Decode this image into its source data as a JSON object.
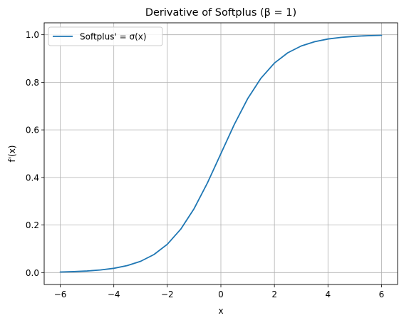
{
  "chart_data": {
    "type": "line",
    "title": "Derivative of Softplus (β = 1)",
    "xlabel": "x",
    "ylabel": "f'(x)",
    "xlim": [
      -6.6,
      6.6
    ],
    "ylim": [
      -0.05,
      1.05
    ],
    "xticks": [
      -6,
      -4,
      -2,
      0,
      2,
      4,
      6
    ],
    "xtick_labels": [
      "−6",
      "−4",
      "−2",
      "0",
      "2",
      "4",
      "6"
    ],
    "yticks": [
      0.0,
      0.2,
      0.4,
      0.6,
      0.8,
      1.0
    ],
    "ytick_labels": [
      "0.0",
      "0.2",
      "0.4",
      "0.6",
      "0.8",
      "1.0"
    ],
    "grid": true,
    "legend": "upper-left",
    "series": [
      {
        "name": "Softplus' = σ(x)",
        "color": "#1f77b4",
        "x": [
          -6,
          -5.5,
          -5,
          -4.5,
          -4,
          -3.5,
          -3,
          -2.5,
          -2,
          -1.5,
          -1,
          -0.5,
          0,
          0.5,
          1,
          1.5,
          2,
          2.5,
          3,
          3.5,
          4,
          4.5,
          5,
          5.5,
          6
        ],
        "y": [
          0.0025,
          0.0041,
          0.0067,
          0.011,
          0.018,
          0.0293,
          0.0474,
          0.0759,
          0.1192,
          0.1824,
          0.2689,
          0.3775,
          0.5,
          0.6225,
          0.7311,
          0.8176,
          0.8808,
          0.9241,
          0.9526,
          0.9707,
          0.982,
          0.989,
          0.9933,
          0.9959,
          0.9975
        ]
      }
    ]
  }
}
